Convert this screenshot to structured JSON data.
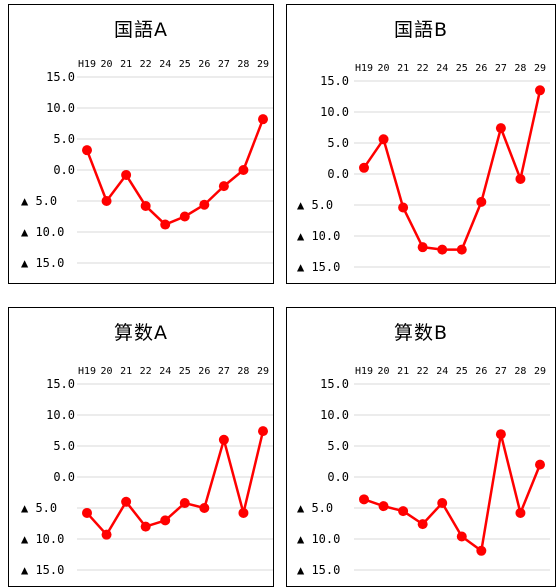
{
  "colors": {
    "series": "#ff0000",
    "grid": "#d9d9d9"
  },
  "chart_data": [
    {
      "type": "line",
      "title": "国語A",
      "categories": [
        "H19",
        "20",
        "21",
        "22",
        "24",
        "25",
        "26",
        "27",
        "28",
        "29"
      ],
      "values": [
        3.2,
        -5.0,
        -0.8,
        -5.8,
        -8.8,
        -7.5,
        -5.6,
        -2.6,
        0.0,
        8.2
      ],
      "ylim": [
        -15,
        15
      ],
      "yticks": [
        "15.0",
        "10.0",
        "5.0",
        "0.0",
        "▲ 5.0",
        "▲ 10.0",
        "▲ 15.0"
      ],
      "grid": true,
      "legend": "none"
    },
    {
      "type": "line",
      "title": "国語B",
      "categories": [
        "H19",
        "20",
        "21",
        "22",
        "24",
        "25",
        "26",
        "27",
        "28",
        "29"
      ],
      "values": [
        1.0,
        5.6,
        -5.4,
        -11.8,
        -12.2,
        -12.2,
        -4.5,
        7.4,
        -0.8,
        13.5
      ],
      "ylim": [
        -15,
        15
      ],
      "yticks": [
        "15.0",
        "10.0",
        "5.0",
        "0.0",
        "▲ 5.0",
        "▲ 10.0",
        "▲ 15.0"
      ],
      "grid": true,
      "legend": "none"
    },
    {
      "type": "line",
      "title": "算数A",
      "categories": [
        "H19",
        "20",
        "21",
        "22",
        "24",
        "25",
        "26",
        "27",
        "28",
        "29"
      ],
      "values": [
        -5.8,
        -9.3,
        -4.0,
        -8.0,
        -7.0,
        -4.2,
        -5.0,
        6.0,
        -5.8,
        7.4
      ],
      "ylim": [
        -15,
        15
      ],
      "yticks": [
        "15.0",
        "10.0",
        "5.0",
        "0.0",
        "▲ 5.0",
        "▲ 10.0",
        "▲ 15.0"
      ],
      "grid": true,
      "legend": "none"
    },
    {
      "type": "line",
      "title": "算数B",
      "categories": [
        "H19",
        "20",
        "21",
        "22",
        "24",
        "25",
        "26",
        "27",
        "28",
        "29"
      ],
      "values": [
        -3.6,
        -4.7,
        -5.5,
        -7.6,
        -4.2,
        -9.6,
        -11.9,
        6.9,
        -5.8,
        2.0
      ],
      "ylim": [
        -15,
        15
      ],
      "yticks": [
        "15.0",
        "10.0",
        "5.0",
        "0.0",
        "▲ 5.0",
        "▲ 10.0",
        "▲ 15.0"
      ],
      "grid": true,
      "legend": "none"
    }
  ]
}
